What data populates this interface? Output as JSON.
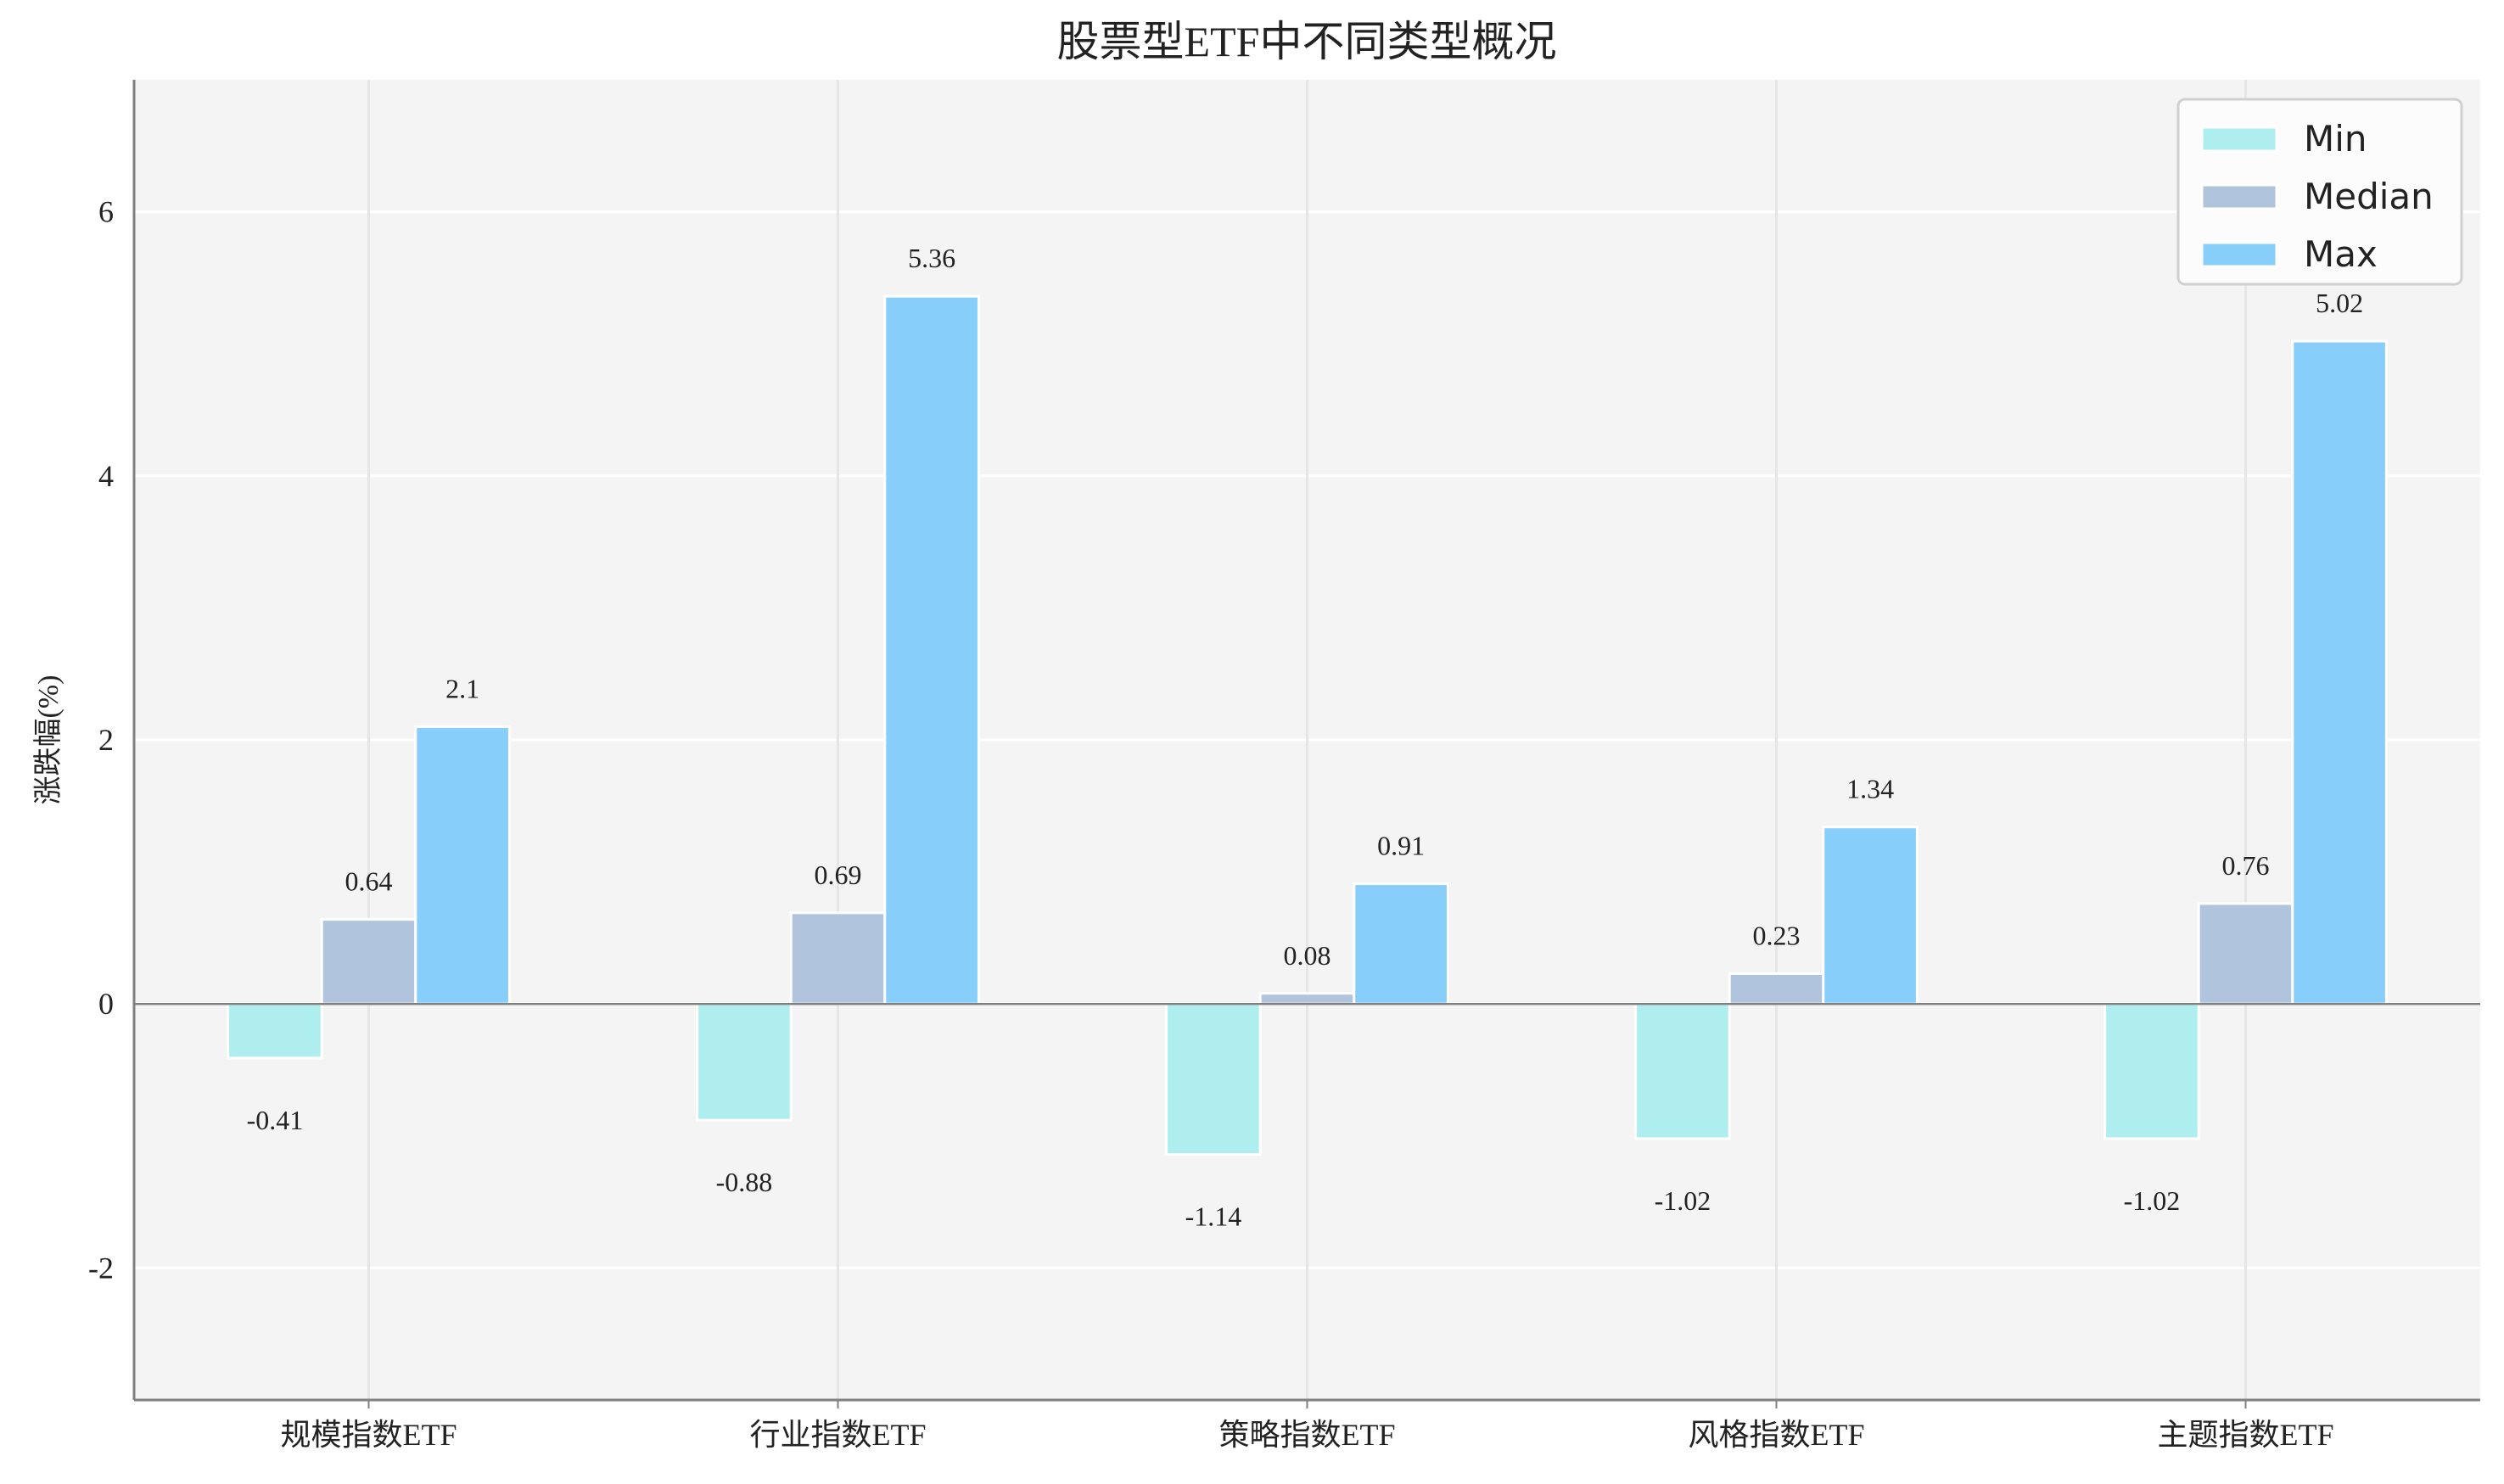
{
  "chart_data": {
    "type": "bar",
    "title": "股票型ETF中不同类型概况",
    "xlabel": "",
    "ylabel": "涨跌幅(%)",
    "categories": [
      "规模指数ETF",
      "行业指数ETF",
      "策略指数ETF",
      "风格指数ETF",
      "主题指数ETF"
    ],
    "series": [
      {
        "name": "Min",
        "color": "#AFEEEE",
        "values": [
          -0.41,
          -0.88,
          -1.14,
          -1.02,
          -1.02
        ]
      },
      {
        "name": "Median",
        "color": "#B0C4DE",
        "values": [
          0.64,
          0.69,
          0.08,
          0.23,
          0.76
        ]
      },
      {
        "name": "Max",
        "color": "#87CEFA",
        "values": [
          2.1,
          5.36,
          0.91,
          1.34,
          5.02
        ]
      }
    ],
    "ylim": [
      -3,
      7
    ],
    "yticks": [
      -2,
      0,
      2,
      4,
      6
    ],
    "grid": true,
    "legend": "top-right",
    "background": "#F4F4F4"
  }
}
